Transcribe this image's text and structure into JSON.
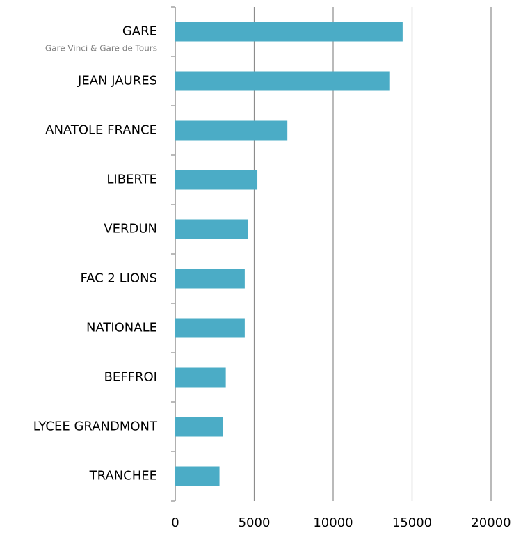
{
  "chart_data": {
    "type": "hbar",
    "categories": [
      "GARE",
      "JEAN JAURES",
      "ANATOLE FRANCE",
      "LIBERTE",
      "VERDUN",
      "FAC 2 LIONS",
      "NATIONALE",
      "BEFFROI",
      "LYCEE GRANDMONT",
      "TRANCHEE"
    ],
    "annotation": "Gare Vinci & Gare de Tours",
    "values": [
      14400,
      13600,
      7100,
      5200,
      4600,
      4400,
      4400,
      3200,
      3000,
      2800
    ],
    "color": "#4bacc6",
    "xlim": [
      0,
      20000
    ],
    "xticks": [
      0,
      5000,
      10000,
      15000,
      20000
    ],
    "grid": true
  }
}
